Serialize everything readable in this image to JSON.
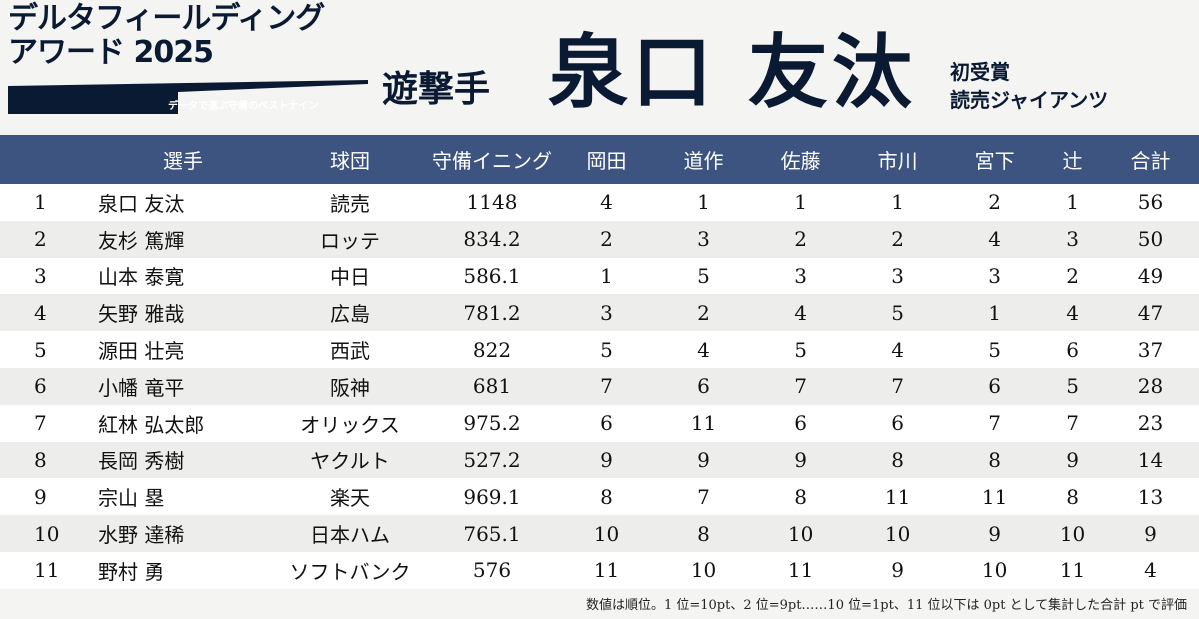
{
  "header": {
    "award_line1": "デルタフィールディング",
    "award_line2": "アワード 2025",
    "tagline": "データで選ぶ守備のベストナイン",
    "position": "遊撃手",
    "player_name": "泉口 友汰",
    "award_note": "初受賞",
    "team": "読売ジャイアンツ",
    "colors": {
      "navy": "#0b1a33",
      "header_bg": "#3d5480"
    }
  },
  "table": {
    "columns": [
      "選手",
      "球団",
      "守備イニング",
      "岡田",
      "道作",
      "佐藤",
      "市川",
      "宮下",
      "辻",
      "合計"
    ],
    "rows": [
      {
        "rank": "1",
        "name": "泉口 友汰",
        "team": "読売",
        "innings": "1148",
        "okada": "4",
        "michisaku": "1",
        "sato": "1",
        "ichikawa": "1",
        "miyashita": "2",
        "tsuji": "1",
        "total": "56"
      },
      {
        "rank": "2",
        "name": "友杉 篤輝",
        "team": "ロッテ",
        "innings": "834.2",
        "okada": "2",
        "michisaku": "3",
        "sato": "2",
        "ichikawa": "2",
        "miyashita": "4",
        "tsuji": "3",
        "total": "50"
      },
      {
        "rank": "3",
        "name": "山本 泰寛",
        "team": "中日",
        "innings": "586.1",
        "okada": "1",
        "michisaku": "5",
        "sato": "3",
        "ichikawa": "3",
        "miyashita": "3",
        "tsuji": "2",
        "total": "49"
      },
      {
        "rank": "4",
        "name": "矢野 雅哉",
        "team": "広島",
        "innings": "781.2",
        "okada": "3",
        "michisaku": "2",
        "sato": "4",
        "ichikawa": "5",
        "miyashita": "1",
        "tsuji": "4",
        "total": "47"
      },
      {
        "rank": "5",
        "name": "源田 壮亮",
        "team": "西武",
        "innings": "822",
        "okada": "5",
        "michisaku": "4",
        "sato": "5",
        "ichikawa": "4",
        "miyashita": "5",
        "tsuji": "6",
        "total": "37"
      },
      {
        "rank": "6",
        "name": "小幡 竜平",
        "team": "阪神",
        "innings": "681",
        "okada": "7",
        "michisaku": "6",
        "sato": "7",
        "ichikawa": "7",
        "miyashita": "6",
        "tsuji": "5",
        "total": "28"
      },
      {
        "rank": "7",
        "name": "紅林 弘太郎",
        "team": "オリックス",
        "innings": "975.2",
        "okada": "6",
        "michisaku": "11",
        "sato": "6",
        "ichikawa": "6",
        "miyashita": "7",
        "tsuji": "7",
        "total": "23"
      },
      {
        "rank": "8",
        "name": "長岡 秀樹",
        "team": "ヤクルト",
        "innings": "527.2",
        "okada": "9",
        "michisaku": "9",
        "sato": "9",
        "ichikawa": "8",
        "miyashita": "8",
        "tsuji": "9",
        "total": "14"
      },
      {
        "rank": "9",
        "name": "宗山 塁",
        "team": "楽天",
        "innings": "969.1",
        "okada": "8",
        "michisaku": "7",
        "sato": "8",
        "ichikawa": "11",
        "miyashita": "11",
        "tsuji": "8",
        "total": "13"
      },
      {
        "rank": "10",
        "name": "水野 達稀",
        "team": "日本ハム",
        "innings": "765.1",
        "okada": "10",
        "michisaku": "8",
        "sato": "10",
        "ichikawa": "10",
        "miyashita": "9",
        "tsuji": "10",
        "total": "9"
      },
      {
        "rank": "11",
        "name": "野村 勇",
        "team": "ソフトバンク",
        "innings": "576",
        "okada": "11",
        "michisaku": "10",
        "sato": "11",
        "ichikawa": "9",
        "miyashita": "10",
        "tsuji": "11",
        "total": "4"
      }
    ]
  },
  "footnote": "数値は順位。1 位=10pt、2 位=9pt……10 位=1pt、11 位以下は 0pt として集計した合計 pt で評価"
}
